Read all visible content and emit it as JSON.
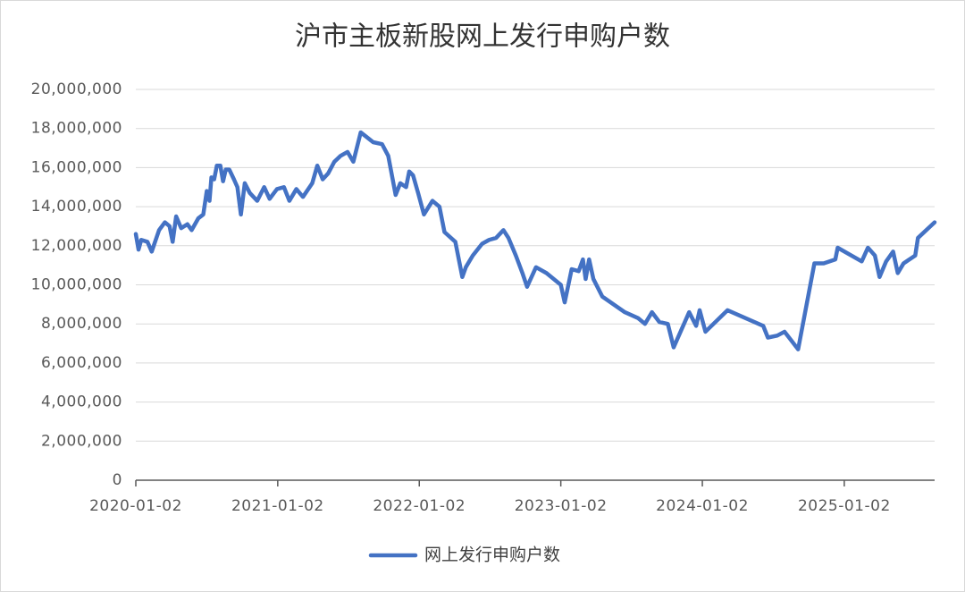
{
  "chart_data": {
    "type": "line",
    "title": "沪市主板新股网上发行申购户数",
    "x": [
      "2020-01-02",
      "2020-01-09",
      "2020-01-16",
      "2020-02-01",
      "2020-02-12",
      "2020-03-02",
      "2020-03-17",
      "2020-03-29",
      "2020-04-06",
      "2020-04-15",
      "2020-04-28",
      "2020-05-14",
      "2020-05-25",
      "2020-06-11",
      "2020-06-24",
      "2020-07-03",
      "2020-07-10",
      "2020-07-15",
      "2020-07-22",
      "2020-07-29",
      "2020-08-07",
      "2020-08-14",
      "2020-08-21",
      "2020-08-30",
      "2020-09-11",
      "2020-09-20",
      "2020-09-29",
      "2020-10-09",
      "2020-10-22",
      "2020-11-10",
      "2020-11-28",
      "2020-12-12",
      "2020-12-31",
      "2021-01-18",
      "2021-02-01",
      "2021-02-19",
      "2021-03-08",
      "2021-04-01",
      "2021-04-14",
      "2021-04-28",
      "2021-05-12",
      "2021-05-28",
      "2021-06-13",
      "2021-07-01",
      "2021-07-16",
      "2021-08-04",
      "2021-08-17",
      "2021-09-05",
      "2021-09-28",
      "2021-10-14",
      "2021-11-02",
      "2021-11-14",
      "2021-11-29",
      "2021-12-07",
      "2021-12-17",
      "2021-12-30",
      "2022-01-14",
      "2022-02-05",
      "2022-02-23",
      "2022-03-08",
      "2022-04-05",
      "2022-04-23",
      "2022-05-02",
      "2022-05-20",
      "2022-06-13",
      "2022-07-01",
      "2022-07-19",
      "2022-08-07",
      "2022-08-20",
      "2022-09-08",
      "2022-09-25",
      "2022-10-07",
      "2022-10-30",
      "2022-11-26",
      "2023-01-02",
      "2023-01-12",
      "2023-01-30",
      "2023-02-17",
      "2023-02-28",
      "2023-03-07",
      "2023-03-16",
      "2023-03-27",
      "2023-04-19",
      "2023-06-16",
      "2023-07-20",
      "2023-08-07",
      "2023-08-25",
      "2023-09-13",
      "2023-10-05",
      "2023-10-20",
      "2023-11-29",
      "2023-12-17",
      "2023-12-26",
      "2024-01-10",
      "2024-03-07",
      "2024-06-07",
      "2024-06-19",
      "2024-07-13",
      "2024-08-01",
      "2024-09-05",
      "2024-10-17",
      "2024-11-10",
      "2024-12-10",
      "2024-12-16",
      "2025-02-16",
      "2025-03-04",
      "2025-03-22",
      "2025-04-03",
      "2025-04-20",
      "2025-05-08",
      "2025-05-20",
      "2025-06-04",
      "2025-07-04",
      "2025-07-11",
      "2025-08-23"
    ],
    "series": [
      {
        "name": "网上发行申购户数",
        "color": "#4472c4",
        "values": [
          12600000,
          11800000,
          12300000,
          12200000,
          11700000,
          12800000,
          13200000,
          13000000,
          12200000,
          13500000,
          12900000,
          13100000,
          12800000,
          13400000,
          13600000,
          14800000,
          14300000,
          15500000,
          15400000,
          16100000,
          16100000,
          15300000,
          15900000,
          15900000,
          15400000,
          15000000,
          13600000,
          15200000,
          14700000,
          14300000,
          15000000,
          14400000,
          14900000,
          15000000,
          14300000,
          14900000,
          14500000,
          15200000,
          16100000,
          15400000,
          15700000,
          16300000,
          16600000,
          16800000,
          16300000,
          17800000,
          17600000,
          17300000,
          17200000,
          16600000,
          14600000,
          15200000,
          15000000,
          15800000,
          15600000,
          14700000,
          13600000,
          14300000,
          14000000,
          12700000,
          12200000,
          10400000,
          10900000,
          11500000,
          12100000,
          12300000,
          12400000,
          12800000,
          12400000,
          11500000,
          10600000,
          9900000,
          10900000,
          10600000,
          10000000,
          9100000,
          10800000,
          10700000,
          11300000,
          10300000,
          11300000,
          10300000,
          9400000,
          8600000,
          8300000,
          8000000,
          8600000,
          8100000,
          8000000,
          6800000,
          8600000,
          7900000,
          8700000,
          7600000,
          8700000,
          7900000,
          7300000,
          7400000,
          7600000,
          6700000,
          11100000,
          11100000,
          11300000,
          11900000,
          11200000,
          11900000,
          11500000,
          10400000,
          11200000,
          11700000,
          10600000,
          11100000,
          11500000,
          12400000,
          13200000
        ]
      }
    ],
    "xlim": [
      "2020-01-02",
      "2025-08-23"
    ],
    "xticks": [
      "2020-01-02",
      "2021-01-02",
      "2022-01-02",
      "2023-01-02",
      "2024-01-02",
      "2025-01-02"
    ],
    "ylim": [
      0,
      20000000
    ],
    "yticks": [
      0,
      {
        "value": 2000000,
        "label": "2,000,000"
      },
      {
        "value": 4000000,
        "label": "4,000,000"
      },
      {
        "value": 6000000,
        "label": "6,000,000"
      },
      {
        "value": 8000000,
        "label": "8,000,000"
      },
      {
        "value": 10000000,
        "label": "10,000,000"
      },
      {
        "value": 12000000,
        "label": "12,000,000"
      },
      {
        "value": 14000000,
        "label": "14,000,000"
      },
      {
        "value": 16000000,
        "label": "16,000,000"
      },
      {
        "value": 18000000,
        "label": "18,000,000"
      },
      {
        "value": 20000000,
        "label": "20,000,000"
      }
    ],
    "grid": true,
    "legend": "bottom"
  }
}
